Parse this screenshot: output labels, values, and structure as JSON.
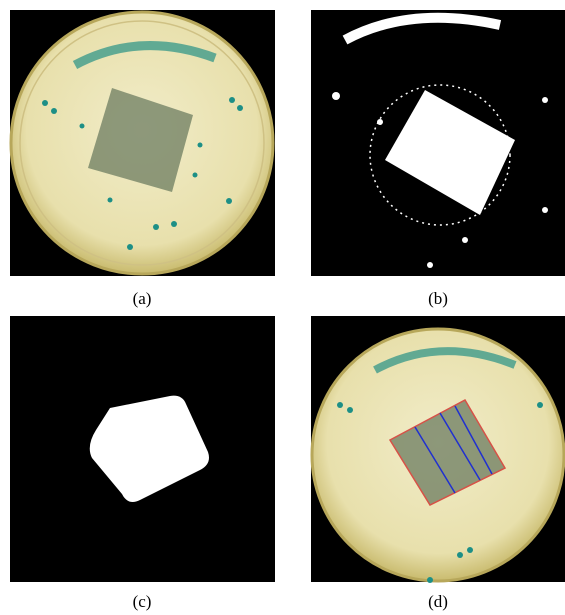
{
  "panels": [
    {
      "caption": "(a)"
    },
    {
      "caption": "(b)"
    },
    {
      "caption": "(c)"
    },
    {
      "caption": "(d)"
    }
  ]
}
